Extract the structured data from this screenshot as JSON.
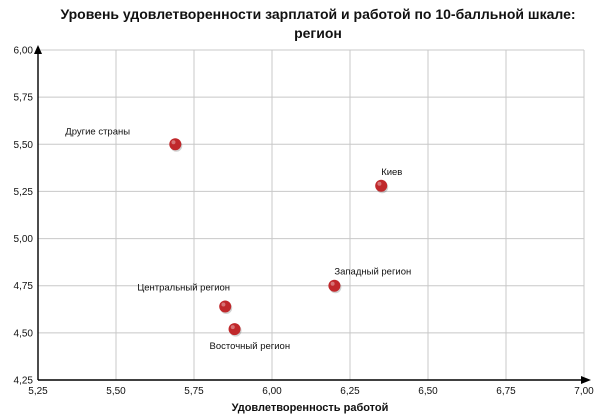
{
  "chart_data": {
    "type": "scatter",
    "title_lines": [
      "Уровень удовлетворенности  зарплатой  и работой по 10-балльной шкале:",
      "регион"
    ],
    "xlabel": "Удовлетворенность работой",
    "ylabel": "",
    "xlim": [
      4.25,
      7.0
    ],
    "ylim": [
      4.25,
      6.0
    ],
    "x_ticks": [
      "5,25",
      "5,50",
      "5,75",
      "6,00",
      "6,25",
      "6,50",
      "6,75",
      "7,00"
    ],
    "y_ticks": [
      "4,25",
      "4,50",
      "4,75",
      "5,00",
      "5,25",
      "5,50",
      "5,75",
      "6,00"
    ],
    "grid": true,
    "marker_color": "#c0282b",
    "points": [
      {
        "label": "Другие страны",
        "x": 5.69,
        "y": 5.5
      },
      {
        "label": "Киев",
        "x": 6.35,
        "y": 5.28
      },
      {
        "label": "Западный регион",
        "x": 6.2,
        "y": 4.75
      },
      {
        "label": "Центральный регион",
        "x": 5.85,
        "y": 4.64
      },
      {
        "label": "Восточный регион",
        "x": 5.88,
        "y": 4.52
      }
    ]
  }
}
